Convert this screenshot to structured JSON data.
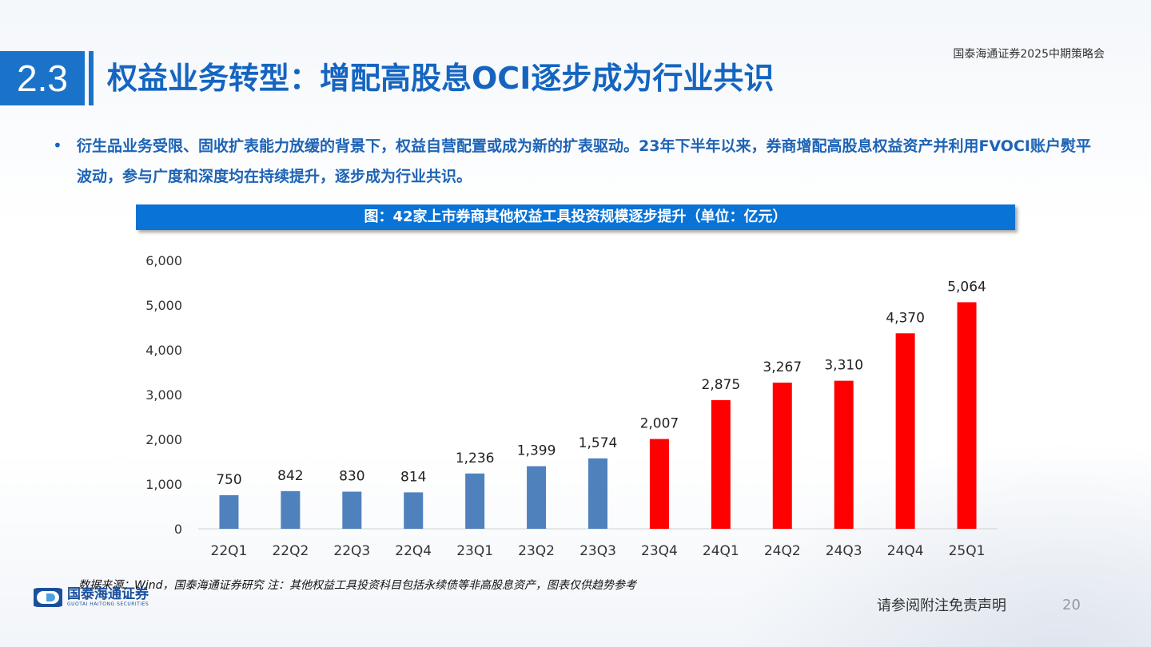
{
  "header": {
    "company": "国泰海通证券2025中期策略会",
    "section_number": "2.3",
    "title": "权益业务转型：增配高股息OCI逐步成为行业共识"
  },
  "bullet": {
    "text": "衍生品业务受限、固收扩表能力放缓的背景下，权益自营配置或成为新的扩表驱动。23年下半年以来，券商增配高股息权益资产并利用FVOCI账户熨平波动，参与广度和深度均在持续提升，逐步成为行业共识。"
  },
  "chart_banner": "图：42家上市券商其他权益工具投资规模逐步提升（单位：亿元）",
  "chart_data": {
    "type": "bar",
    "categories": [
      "22Q1",
      "22Q2",
      "22Q3",
      "22Q4",
      "23Q1",
      "23Q2",
      "23Q3",
      "23Q4",
      "24Q1",
      "24Q2",
      "24Q3",
      "24Q4",
      "25Q1"
    ],
    "values": [
      750,
      842,
      830,
      814,
      1236,
      1399,
      1574,
      2007,
      2875,
      3267,
      3310,
      4370,
      5064
    ],
    "data_labels": [
      "750",
      "842",
      "830",
      "814",
      "1,236",
      "1,399",
      "1,574",
      "2,007",
      "2,875",
      "3,267",
      "3,310",
      "4,370",
      "5,064"
    ],
    "ylim": [
      0,
      6000
    ],
    "yticks": [
      "0",
      "1,000",
      "2,000",
      "3,000",
      "4,000",
      "5,000",
      "6,000"
    ],
    "colors": [
      "#4f81bd",
      "#4f81bd",
      "#4f81bd",
      "#4f81bd",
      "#4f81bd",
      "#4f81bd",
      "#4f81bd",
      "#ff0000",
      "#ff0000",
      "#ff0000",
      "#ff0000",
      "#ff0000",
      "#ff0000"
    ],
    "grid": false
  },
  "footer": {
    "source": "数据来源：Wind，国泰海通证券研究 注：其他权益工具投资科目包括永续债等非高股息资产，图表仅供趋势参考",
    "logo_cn": "国泰海通证券",
    "logo_en": "GUOTAI HAITONG SECURITIES",
    "disclaimer": "请参阅附注免责声明",
    "page_number": "20"
  }
}
